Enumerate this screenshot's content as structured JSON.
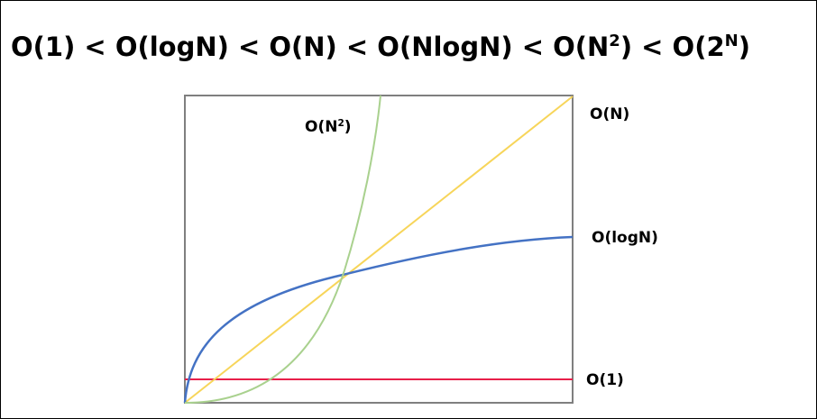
{
  "title": {
    "parts": [
      "O(1) < O(logN) < O(N) < O(NlogN) < O(N",
      "2",
      ") < O(2",
      "N",
      ")"
    ]
  },
  "labels": {
    "n_squared": [
      "O(N",
      "2",
      ")"
    ],
    "n": "O(N)",
    "log_n": "O(logN)",
    "constant": "O(1)"
  }
}
